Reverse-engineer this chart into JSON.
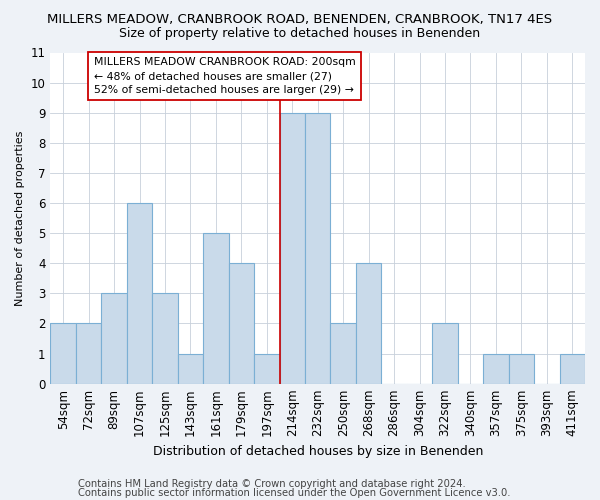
{
  "title": "MILLERS MEADOW, CRANBROOK ROAD, BENENDEN, CRANBROOK, TN17 4ES",
  "subtitle": "Size of property relative to detached houses in Benenden",
  "xlabel": "Distribution of detached houses by size in Benenden",
  "ylabel": "Number of detached properties",
  "categories": [
    "54sqm",
    "72sqm",
    "89sqm",
    "107sqm",
    "125sqm",
    "143sqm",
    "161sqm",
    "179sqm",
    "197sqm",
    "214sqm",
    "232sqm",
    "250sqm",
    "268sqm",
    "286sqm",
    "304sqm",
    "322sqm",
    "340sqm",
    "357sqm",
    "375sqm",
    "393sqm",
    "411sqm"
  ],
  "values": [
    2,
    2,
    3,
    6,
    3,
    1,
    5,
    4,
    1,
    9,
    9,
    2,
    4,
    0,
    0,
    2,
    0,
    1,
    1,
    0,
    1
  ],
  "bar_color": "#c9daea",
  "bar_edge_color": "#7bafd4",
  "highlight_line_index": 8,
  "highlight_line_color": "#cc0000",
  "ylim": [
    0,
    11
  ],
  "yticks": [
    0,
    1,
    2,
    3,
    4,
    5,
    6,
    7,
    8,
    9,
    10,
    11
  ],
  "annotation_box_text": "MILLERS MEADOW CRANBROOK ROAD: 200sqm\n← 48% of detached houses are smaller (27)\n52% of semi-detached houses are larger (29) →",
  "footer1": "Contains HM Land Registry data © Crown copyright and database right 2024.",
  "footer2": "Contains public sector information licensed under the Open Government Licence v3.0.",
  "bg_color": "#eef2f7",
  "plot_bg_color": "#ffffff",
  "grid_color": "#c8d0da",
  "title_fontsize": 9.5,
  "subtitle_fontsize": 9,
  "annotation_fontsize": 7.8,
  "ylabel_fontsize": 8,
  "xlabel_fontsize": 9,
  "footer_fontsize": 7.2,
  "tick_fontsize": 8.5
}
